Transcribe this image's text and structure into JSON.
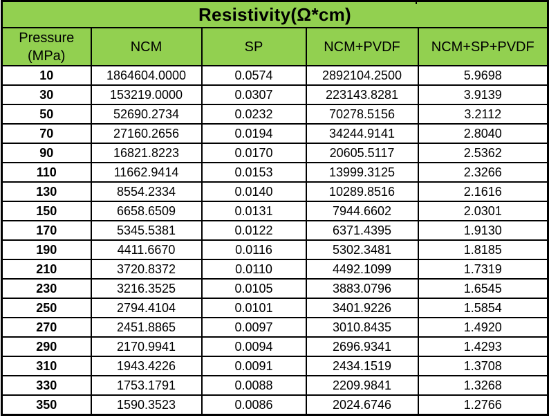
{
  "table": {
    "title": "Resistivity(Ω*cm)",
    "header_bg": "#92D050",
    "border_color": "#000000",
    "columns": [
      {
        "id": "pressure",
        "label": "Pressure (MPa)"
      },
      {
        "id": "ncm",
        "label": "NCM"
      },
      {
        "id": "sp",
        "label": "SP"
      },
      {
        "id": "ncm-pvdf",
        "label": "NCM+PVDF"
      },
      {
        "id": "ncm-sp-pvdf",
        "label": "NCM+SP+PVDF"
      }
    ],
    "rows": [
      [
        "10",
        "1864604.0000",
        "0.0574",
        "2892104.2500",
        "5.9698"
      ],
      [
        "30",
        "153219.0000",
        "0.0307",
        "223143.8281",
        "3.9139"
      ],
      [
        "50",
        "52690.2734",
        "0.0232",
        "70278.5156",
        "3.2112"
      ],
      [
        "70",
        "27160.2656",
        "0.0194",
        "34244.9141",
        "2.8040"
      ],
      [
        "90",
        "16821.8223",
        "0.0170",
        "20605.5117",
        "2.5362"
      ],
      [
        "110",
        "11662.9414",
        "0.0153",
        "13999.3125",
        "2.3266"
      ],
      [
        "130",
        "8554.2334",
        "0.0140",
        "10289.8516",
        "2.1616"
      ],
      [
        "150",
        "6658.6509",
        "0.0131",
        "7944.6602",
        "2.0301"
      ],
      [
        "170",
        "5345.5381",
        "0.0122",
        "6371.4395",
        "1.9130"
      ],
      [
        "190",
        "4411.6670",
        "0.0116",
        "5302.3481",
        "1.8185"
      ],
      [
        "210",
        "3720.8372",
        "0.0110",
        "4492.1099",
        "1.7319"
      ],
      [
        "230",
        "3216.3525",
        "0.0105",
        "3883.0796",
        "1.6545"
      ],
      [
        "250",
        "2794.4104",
        "0.0101",
        "3401.9226",
        "1.5854"
      ],
      [
        "270",
        "2451.8865",
        "0.0097",
        "3010.8435",
        "1.4920"
      ],
      [
        "290",
        "2170.9941",
        "0.0094",
        "2696.9341",
        "1.4293"
      ],
      [
        "310",
        "1943.4226",
        "0.0091",
        "2434.1519",
        "1.3708"
      ],
      [
        "330",
        "1753.1791",
        "0.0088",
        "2209.9841",
        "1.3268"
      ],
      [
        "350",
        "1590.3523",
        "0.0086",
        "2024.6746",
        "1.2766"
      ]
    ]
  },
  "chart_data": {
    "type": "table",
    "title": "Resistivity(Ω*cm)",
    "columns": [
      "Pressure (MPa)",
      "NCM",
      "SP",
      "NCM+PVDF",
      "NCM+SP+PVDF"
    ],
    "rows": [
      [
        10,
        1864604.0,
        0.0574,
        2892104.25,
        5.9698
      ],
      [
        30,
        153219.0,
        0.0307,
        223143.8281,
        3.9139
      ],
      [
        50,
        52690.2734,
        0.0232,
        70278.5156,
        3.2112
      ],
      [
        70,
        27160.2656,
        0.0194,
        34244.9141,
        2.804
      ],
      [
        90,
        16821.8223,
        0.017,
        20605.5117,
        2.5362
      ],
      [
        110,
        11662.9414,
        0.0153,
        13999.3125,
        2.3266
      ],
      [
        130,
        8554.2334,
        0.014,
        10289.8516,
        2.1616
      ],
      [
        150,
        6658.6509,
        0.0131,
        7944.6602,
        2.0301
      ],
      [
        170,
        5345.5381,
        0.0122,
        6371.4395,
        1.913
      ],
      [
        190,
        4411.667,
        0.0116,
        5302.3481,
        1.8185
      ],
      [
        210,
        3720.8372,
        0.011,
        4492.1099,
        1.7319
      ],
      [
        230,
        3216.3525,
        0.0105,
        3883.0796,
        1.6545
      ],
      [
        250,
        2794.4104,
        0.0101,
        3401.9226,
        1.5854
      ],
      [
        270,
        2451.8865,
        0.0097,
        3010.8435,
        1.492
      ],
      [
        290,
        2170.9941,
        0.0094,
        2696.9341,
        1.4293
      ],
      [
        310,
        1943.4226,
        0.0091,
        2434.1519,
        1.3708
      ],
      [
        330,
        1753.1791,
        0.0088,
        2209.9841,
        1.3268
      ],
      [
        350,
        1590.3523,
        0.0086,
        2024.6746,
        1.2766
      ]
    ]
  }
}
